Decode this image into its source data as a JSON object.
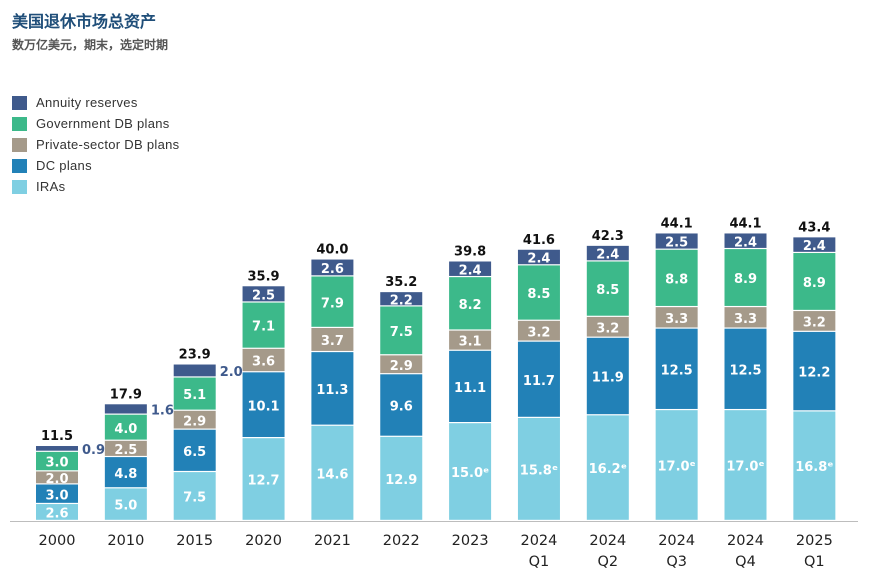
{
  "title": "美国退休市场总资产",
  "subtitle": "数万亿美元，期末，选定时期",
  "chart_data": {
    "type": "bar",
    "stacked": true,
    "title": "美国退休市场总资产",
    "subtitle": "数万亿美元，期末，选定时期",
    "xlabel": "",
    "ylabel": "",
    "ylim": [
      0,
      46
    ],
    "legend_position": "top-left",
    "categories": [
      [
        "2000"
      ],
      [
        "2010"
      ],
      [
        "2015"
      ],
      [
        "2020"
      ],
      [
        "2021"
      ],
      [
        "2022"
      ],
      [
        "2023"
      ],
      [
        "2024",
        "Q1"
      ],
      [
        "2024",
        "Q2"
      ],
      [
        "2024",
        "Q3"
      ],
      [
        "2024",
        "Q4"
      ],
      [
        "2025",
        "Q1"
      ]
    ],
    "totals": [
      "11.5",
      "17.9",
      "23.9",
      "35.9",
      "40.0",
      "35.2",
      "39.8",
      "41.6",
      "42.3",
      "44.1",
      "44.1",
      "43.4"
    ],
    "series": [
      {
        "name": "IRAs",
        "color": "#7fcfe2",
        "label_color": "#ffffff",
        "values": [
          2.6,
          5.0,
          7.5,
          12.7,
          14.6,
          12.9,
          15.0,
          15.8,
          16.2,
          17.0,
          17.0,
          16.8
        ],
        "labels": [
          "2.6",
          "5.0",
          "7.5",
          "12.7",
          "14.6",
          "12.9",
          "15.0ᵉ",
          "15.8ᵉ",
          "16.2ᵉ",
          "17.0ᵉ",
          "17.0ᵉ",
          "16.8ᵉ"
        ]
      },
      {
        "name": "DC plans",
        "color": "#2281b7",
        "label_color": "#ffffff",
        "values": [
          3.0,
          4.8,
          6.5,
          10.1,
          11.3,
          9.6,
          11.1,
          11.7,
          11.9,
          12.5,
          12.5,
          12.2
        ],
        "labels": [
          "3.0",
          "4.8",
          "6.5",
          "10.1",
          "11.3",
          "9.6",
          "11.1",
          "11.7",
          "11.9",
          "12.5",
          "12.5",
          "12.2"
        ]
      },
      {
        "name": "Private-sector DB plans",
        "color": "#a59a8a",
        "label_color": "#ffffff",
        "values": [
          2.0,
          2.5,
          2.9,
          3.6,
          3.7,
          2.9,
          3.1,
          3.2,
          3.2,
          3.3,
          3.3,
          3.2
        ],
        "labels": [
          "2.0",
          "2.5",
          "2.9",
          "3.6",
          "3.7",
          "2.9",
          "3.1",
          "3.2",
          "3.2",
          "3.3",
          "3.3",
          "3.2"
        ]
      },
      {
        "name": "Government DB plans",
        "color": "#3cb98a",
        "label_color": "#ffffff",
        "values": [
          3.0,
          4.0,
          5.1,
          7.1,
          7.9,
          7.5,
          8.2,
          8.5,
          8.5,
          8.8,
          8.9,
          8.9
        ],
        "labels": [
          "3.0",
          "4.0",
          "5.1",
          "7.1",
          "7.9",
          "7.5",
          "8.2",
          "8.5",
          "8.5",
          "8.8",
          "8.9",
          "8.9"
        ]
      },
      {
        "name": "Annuity reserves",
        "color": "#3f5a8c",
        "label_color": "#ffffff",
        "values": [
          0.9,
          1.6,
          2.0,
          2.5,
          2.6,
          2.2,
          2.4,
          2.4,
          2.4,
          2.5,
          2.4,
          2.4
        ],
        "labels": [
          "0.9",
          "1.6",
          "2.0",
          "2.5",
          "2.6",
          "2.2",
          "2.4",
          "2.4",
          "2.4",
          "2.5",
          "2.4",
          "2.4"
        ],
        "outside_label_indices": [
          0,
          1,
          2
        ]
      }
    ]
  }
}
